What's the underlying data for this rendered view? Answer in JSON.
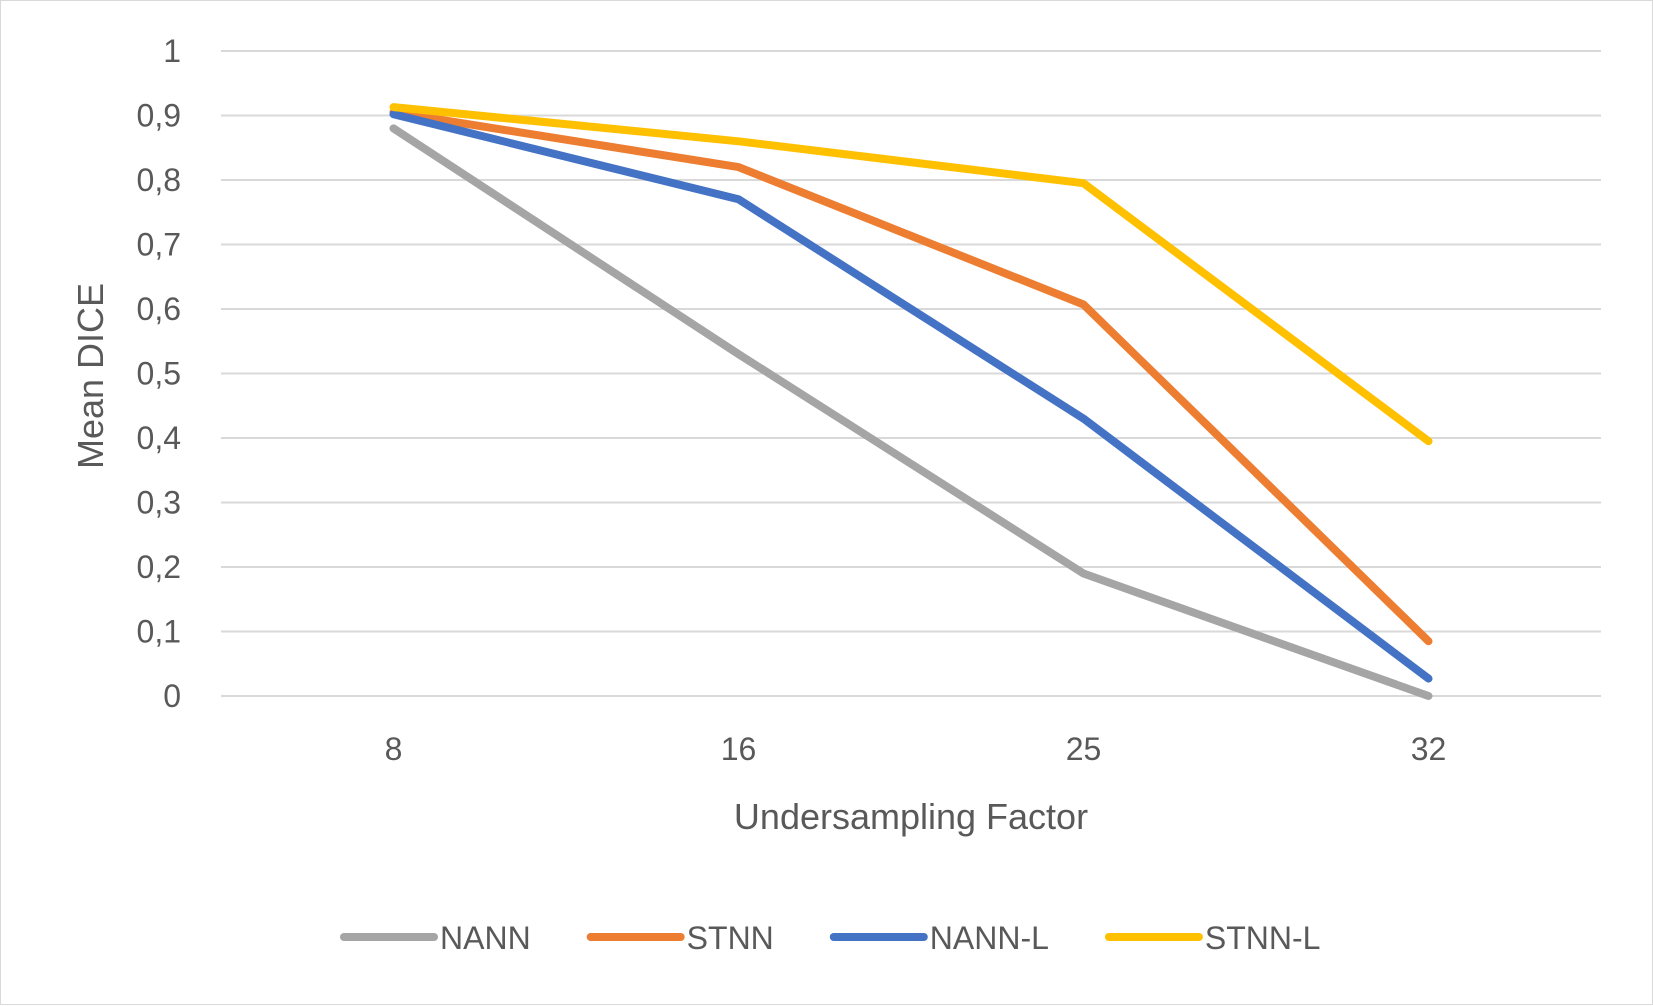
{
  "chart_data": {
    "type": "line",
    "title": "",
    "xlabel": "Undersampling Factor",
    "ylabel": "Mean DICE",
    "categories": [
      "8",
      "16",
      "25",
      "32"
    ],
    "ylim": [
      0,
      1
    ],
    "yticks": [
      "0",
      "0,1",
      "0,2",
      "0,3",
      "0,4",
      "0,5",
      "0,6",
      "0,7",
      "0,8",
      "0,9",
      "1"
    ],
    "grid": true,
    "legend_position": "bottom",
    "series": [
      {
        "name": "NANN",
        "color": "#a5a5a5",
        "values": [
          0.88,
          0.53,
          0.19,
          0.0
        ]
      },
      {
        "name": "STNN",
        "color": "#ed7d31",
        "values": [
          0.905,
          0.82,
          0.607,
          0.085
        ]
      },
      {
        "name": "NANN-L",
        "color": "#4472c4",
        "values": [
          0.902,
          0.77,
          0.43,
          0.027
        ]
      },
      {
        "name": "STNN-L",
        "color": "#ffc000",
        "values": [
          0.913,
          0.86,
          0.795,
          0.395
        ]
      }
    ]
  }
}
